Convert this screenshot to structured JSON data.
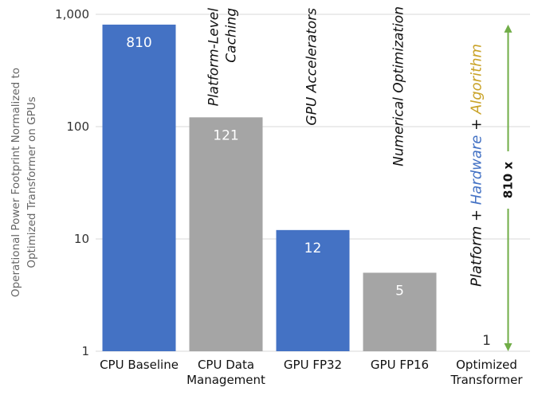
{
  "chart_data": {
    "type": "bar",
    "yscale": "log",
    "ylim": [
      1,
      1000
    ],
    "yticks": [
      "1",
      "10",
      "100",
      "1,000"
    ],
    "ylabel": [
      "Operational Power Footprint Normalized to",
      "Optimized Transformer on GPUs"
    ],
    "categories": [
      [
        "CPU Baseline"
      ],
      [
        "CPU Data",
        "Management"
      ],
      [
        "GPU FP32"
      ],
      [
        "GPU FP16"
      ],
      [
        "Optimized",
        "Transformer"
      ]
    ],
    "values": [
      810,
      121,
      12,
      5,
      1
    ],
    "data_labels": [
      "810",
      "121",
      "12",
      "5",
      "1"
    ],
    "bar_colors": [
      "#4472c4",
      "#a5a5a5",
      "#4472c4",
      "#a5a5a5",
      "none"
    ],
    "annotations": [
      [
        "Platform-Level",
        "Caching"
      ],
      [
        "GPU Accelerators"
      ],
      [
        "Numerical Optimization"
      ]
    ],
    "summary": [
      {
        "text": "Platform",
        "color": "#111111"
      },
      {
        "text": " + ",
        "color": "#111111"
      },
      {
        "text": "Hardware",
        "color": "#4472c4"
      },
      {
        "text": " + ",
        "color": "#111111"
      },
      {
        "text": "Algorithm",
        "color": "#c9a227"
      }
    ],
    "factor_label": "810 x",
    "arrow_color": "#70ad47",
    "grid": true
  }
}
